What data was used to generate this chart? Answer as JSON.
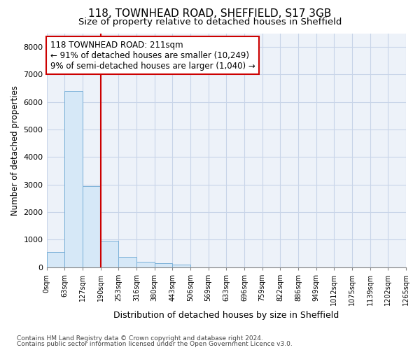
{
  "title": "118, TOWNHEAD ROAD, SHEFFIELD, S17 3GB",
  "subtitle": "Size of property relative to detached houses in Sheffield",
  "xlabel": "Distribution of detached houses by size in Sheffield",
  "ylabel": "Number of detached properties",
  "footer_line1": "Contains HM Land Registry data © Crown copyright and database right 2024.",
  "footer_line2": "Contains public sector information licensed under the Open Government Licence v3.0.",
  "annotation_line1": "118 TOWNHEAD ROAD: 211sqm",
  "annotation_line2": "← 91% of detached houses are smaller (10,249)",
  "annotation_line3": "9% of semi-detached houses are larger (1,040) →",
  "bar_values": [
    550,
    6400,
    2950,
    970,
    380,
    200,
    140,
    80,
    0,
    0,
    0,
    0,
    0,
    0,
    0,
    0,
    0,
    0,
    0,
    0
  ],
  "bar_color": "#d6e8f7",
  "bar_edge_color": "#7ab0d8",
  "grid_color": "#c8d4e8",
  "vline_x": 3.0,
  "vline_color": "#cc0000",
  "annotation_box_color": "#cc0000",
  "ylim": [
    0,
    8500
  ],
  "yticks": [
    0,
    1000,
    2000,
    3000,
    4000,
    5000,
    6000,
    7000,
    8000
  ],
  "x_labels": [
    "0sqm",
    "63sqm",
    "127sqm",
    "190sqm",
    "253sqm",
    "316sqm",
    "380sqm",
    "443sqm",
    "506sqm",
    "569sqm",
    "633sqm",
    "696sqm",
    "759sqm",
    "822sqm",
    "886sqm",
    "949sqm",
    "1012sqm",
    "1075sqm",
    "1139sqm",
    "1202sqm",
    "1265sqm"
  ],
  "background_color": "#ffffff",
  "plot_bg_color": "#edf2f9"
}
